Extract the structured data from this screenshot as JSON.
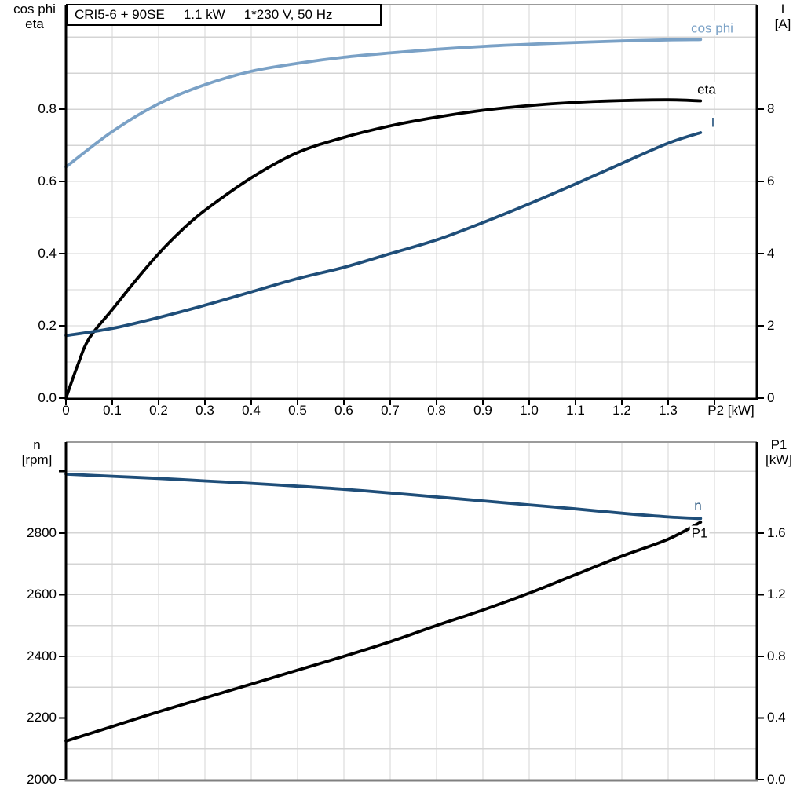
{
  "title": {
    "model": "CRI5-6 + 90SE",
    "power": "1.1 kW",
    "voltage": "1*230 V, 50 Hz"
  },
  "axis_headers": {
    "top_left": [
      "cos phi",
      "eta"
    ],
    "top_right": [
      "I",
      "[A]"
    ],
    "bottom_left": [
      "n",
      "[rpm]"
    ],
    "bottom_right": [
      "P1",
      "[kW]"
    ]
  },
  "colors": {
    "cos_phi": "#7AA1C6",
    "current": "#1F4E79",
    "eta": "#000000",
    "speed": "#1F4E79",
    "p1": "#000000",
    "grid": "#d4d4d4",
    "border_gray": "#9b9b9b",
    "bottom_border_gray": "#808080",
    "axis_black": "#000000"
  },
  "chart_data": [
    {
      "type": "line",
      "panel": "top",
      "title": "CRI5-6 + 90SE  1.1 kW  1*230 V, 50 Hz",
      "x_axis": {
        "label": "P2 [kW]",
        "min": 0,
        "max": 1.4915,
        "grid_step": 0.1,
        "ticks": [
          0,
          0.1,
          0.2,
          0.3,
          0.4,
          0.5,
          0.6,
          0.7,
          0.8,
          0.9,
          1.0,
          1.1,
          1.2,
          1.3,
          1.4
        ],
        "tick_labels": [
          "0",
          "0.1",
          "0.2",
          "0.3",
          "0.4",
          "0.5",
          "0.6",
          "0.7",
          "0.8",
          "0.9",
          "1.0",
          "1.1",
          "1.2",
          "1.3",
          ""
        ]
      },
      "y_left": {
        "title": "cos phi / eta",
        "min": 0,
        "max": 1.0895,
        "grid_step": 0.1,
        "ticks": [
          0,
          0.2,
          0.4,
          0.6,
          0.8
        ],
        "tick_labels": [
          "0.0",
          "0.2",
          "0.4",
          "0.6",
          "0.8"
        ]
      },
      "y_right": {
        "title": "I [A]",
        "min": 0,
        "max": 10.895,
        "grid_step": 1,
        "ticks": [
          0,
          2,
          4,
          6,
          8
        ],
        "tick_labels": [
          "0",
          "2",
          "4",
          "6",
          "8"
        ]
      },
      "series": [
        {
          "name": "cos phi",
          "axis": "left",
          "color": "#7AA1C6",
          "x": [
            0,
            0.1,
            0.2,
            0.3,
            0.4,
            0.5,
            0.6,
            0.7,
            0.8,
            0.9,
            1.0,
            1.1,
            1.2,
            1.3,
            1.37
          ],
          "y": [
            0.64,
            0.738,
            0.815,
            0.868,
            0.905,
            0.927,
            0.944,
            0.956,
            0.966,
            0.974,
            0.98,
            0.985,
            0.989,
            0.992,
            0.993
          ]
        },
        {
          "name": "eta",
          "axis": "left",
          "color": "#000000",
          "x": [
            0,
            0.025,
            0.05,
            0.1,
            0.15,
            0.2,
            0.25,
            0.3,
            0.4,
            0.5,
            0.6,
            0.7,
            0.8,
            0.9,
            1.0,
            1.1,
            1.2,
            1.3,
            1.37
          ],
          "y": [
            0,
            0.09,
            0.165,
            0.245,
            0.325,
            0.4,
            0.465,
            0.52,
            0.61,
            0.68,
            0.722,
            0.754,
            0.778,
            0.797,
            0.81,
            0.819,
            0.824,
            0.826,
            0.823
          ]
        },
        {
          "name": "I",
          "axis": "right",
          "color": "#1F4E79",
          "x": [
            0,
            0.1,
            0.2,
            0.3,
            0.4,
            0.5,
            0.6,
            0.7,
            0.8,
            0.9,
            1.0,
            1.1,
            1.2,
            1.3,
            1.37
          ],
          "y": [
            1.73,
            1.93,
            2.23,
            2.57,
            2.94,
            3.31,
            3.62,
            4.0,
            4.38,
            4.86,
            5.38,
            5.93,
            6.5,
            7.06,
            7.35
          ]
        }
      ]
    },
    {
      "type": "line",
      "panel": "bottom",
      "x_axis": {
        "label": "",
        "min": 0,
        "max": 1.4915,
        "grid_step": 0.1,
        "ticks": [],
        "tick_labels": []
      },
      "y_left": {
        "title": "n [rpm]",
        "min": 2000,
        "max": 3095,
        "grid_step": 100,
        "ticks": [
          2000,
          2200,
          2400,
          2600,
          2800,
          3000
        ],
        "tick_labels": [
          "2000",
          "2200",
          "2400",
          "2600",
          "2800",
          ""
        ]
      },
      "y_right": {
        "title": "P1 [kW]",
        "min": 0,
        "max": 2.19,
        "grid_step": 0.2,
        "ticks": [
          0,
          0.4,
          0.8,
          1.2,
          1.6
        ],
        "tick_labels": [
          "0.0",
          "0.4",
          "0.8",
          "1.2",
          "1.6"
        ]
      },
      "series": [
        {
          "name": "n",
          "axis": "left",
          "color": "#1F4E79",
          "x": [
            0,
            0.1,
            0.2,
            0.3,
            0.4,
            0.5,
            0.6,
            0.7,
            0.8,
            0.9,
            1.0,
            1.1,
            1.2,
            1.3,
            1.37
          ],
          "y": [
            2991,
            2984,
            2977,
            2969,
            2961,
            2952,
            2942,
            2930,
            2917,
            2904,
            2891,
            2878,
            2864,
            2852,
            2847
          ]
        },
        {
          "name": "P1",
          "axis": "right",
          "color": "#000000",
          "x": [
            0,
            0.1,
            0.2,
            0.3,
            0.4,
            0.5,
            0.6,
            0.7,
            0.8,
            0.9,
            1.0,
            1.1,
            1.2,
            1.3,
            1.37
          ],
          "y": [
            0.25,
            0.345,
            0.44,
            0.53,
            0.62,
            0.71,
            0.8,
            0.895,
            1.0,
            1.1,
            1.21,
            1.33,
            1.45,
            1.56,
            1.67
          ]
        }
      ]
    }
  ]
}
